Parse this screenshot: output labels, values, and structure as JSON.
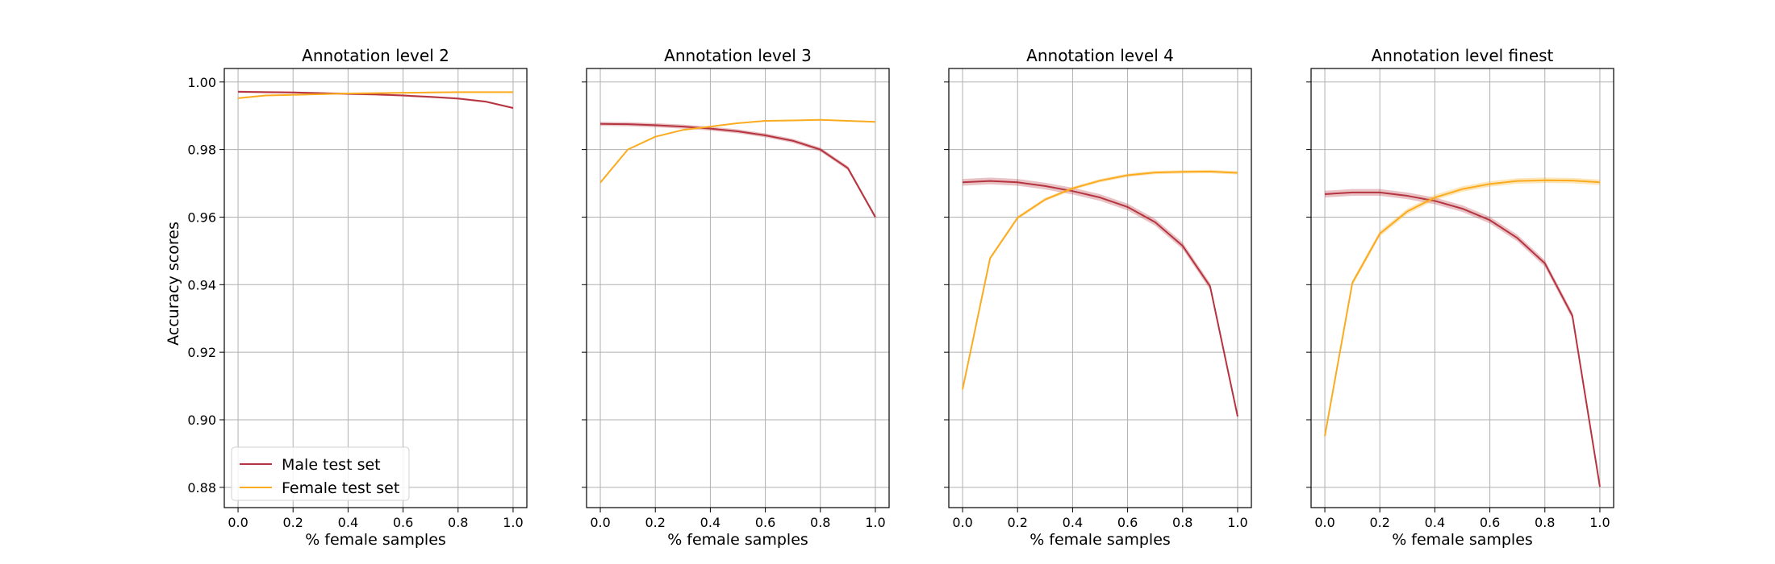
{
  "chart_data": {
    "type": "line",
    "shared_ylabel": "Accuracy scores",
    "ylim": [
      0.874,
      1.004
    ],
    "xlim": [
      -0.05,
      1.05
    ],
    "x": [
      0.0,
      0.1,
      0.2,
      0.3,
      0.4,
      0.5,
      0.6,
      0.7,
      0.8,
      0.9,
      1.0
    ],
    "xticks": [
      "0.0",
      "0.2",
      "0.4",
      "0.6",
      "0.8",
      "1.0"
    ],
    "yticks": [
      "0.88",
      "0.90",
      "0.92",
      "0.94",
      "0.96",
      "0.98",
      "1.00"
    ],
    "xtick_values": [
      0.0,
      0.2,
      0.4,
      0.6,
      0.8,
      1.0
    ],
    "ytick_values": [
      0.88,
      0.9,
      0.92,
      0.94,
      0.96,
      0.98,
      1.0
    ],
    "legend": {
      "placement": "lower-left",
      "entries": [
        "Male test set",
        "Female test set"
      ]
    },
    "colors": {
      "male": "#b5343f",
      "female": "#fbab1f"
    },
    "panels": [
      {
        "title": "Annotation level 2",
        "xlabel": "% female samples",
        "series": [
          {
            "name": "Male test set",
            "values": [
              0.9971,
              0.997,
              0.9969,
              0.9967,
              0.9965,
              0.9963,
              0.996,
              0.9956,
              0.9951,
              0.9942,
              0.9923
            ],
            "band": 0.0003
          },
          {
            "name": "Female test set",
            "values": [
              0.9952,
              0.996,
              0.9962,
              0.9964,
              0.9966,
              0.9967,
              0.9968,
              0.9969,
              0.997,
              0.997,
              0.997
            ],
            "band": 0.0002
          }
        ]
      },
      {
        "title": "Annotation level 3",
        "xlabel": "% female samples",
        "series": [
          {
            "name": "Male test set",
            "values": [
              0.9876,
              0.9875,
              0.9872,
              0.9868,
              0.9862,
              0.9854,
              0.9842,
              0.9826,
              0.98,
              0.9745,
              0.96
            ],
            "band": 0.0006
          },
          {
            "name": "Female test set",
            "values": [
              0.9702,
              0.98,
              0.9838,
              0.9858,
              0.9868,
              0.9878,
              0.9885,
              0.9886,
              0.9888,
              0.9885,
              0.9882
            ],
            "band": 0.0002
          }
        ]
      },
      {
        "title": "Annotation level 4",
        "xlabel": "% female samples",
        "series": [
          {
            "name": "Male test set",
            "values": [
              0.9703,
              0.9707,
              0.9703,
              0.9692,
              0.9677,
              0.9658,
              0.963,
              0.9585,
              0.9515,
              0.9395,
              0.901
            ],
            "band": 0.001
          },
          {
            "name": "Female test set",
            "values": [
              0.909,
              0.9478,
              0.9598,
              0.9652,
              0.9685,
              0.9708,
              0.9724,
              0.9732,
              0.9734,
              0.9735,
              0.9731
            ],
            "band": 0.0005
          }
        ]
      },
      {
        "title": "Annotation level finest",
        "xlabel": "% female samples",
        "series": [
          {
            "name": "Male test set",
            "values": [
              0.9668,
              0.9673,
              0.9673,
              0.9663,
              0.9648,
              0.9625,
              0.9591,
              0.9538,
              0.9463,
              0.9308,
              0.8802
            ],
            "band": 0.001
          },
          {
            "name": "Female test set",
            "values": [
              0.8952,
              0.9405,
              0.9551,
              0.9617,
              0.9658,
              0.9683,
              0.9698,
              0.9707,
              0.9709,
              0.9708,
              0.9703
            ],
            "band": 0.0008
          }
        ]
      }
    ]
  }
}
